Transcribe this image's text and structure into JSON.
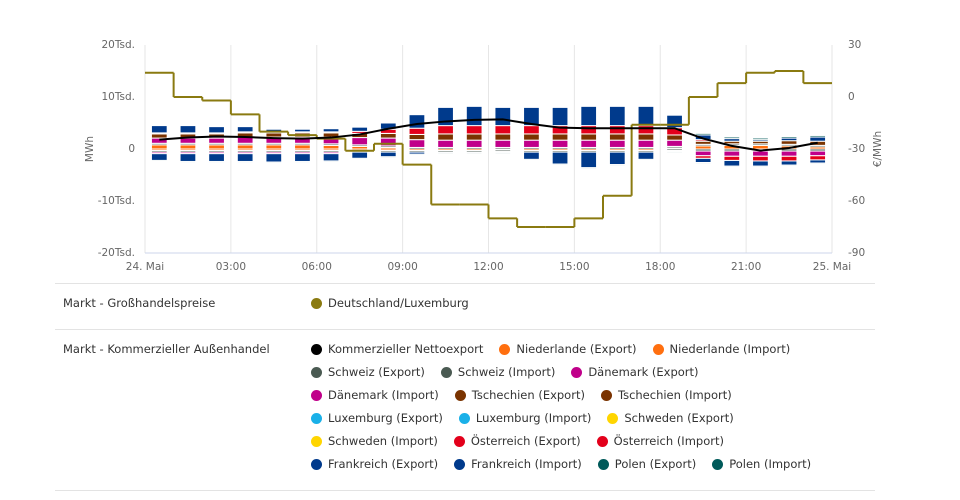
{
  "chart_data": {
    "type": "bar",
    "stacked": true,
    "x": [
      0,
      1,
      2,
      3,
      4,
      5,
      6,
      7,
      8,
      9,
      10,
      11,
      12,
      13,
      14,
      15,
      16,
      17,
      18,
      19,
      20,
      21,
      22,
      23
    ],
    "xlim": [
      0,
      24
    ],
    "xticks": [
      {
        "value": 0,
        "label": "24. Mai"
      },
      {
        "value": 3,
        "label": "03:00"
      },
      {
        "value": 6,
        "label": "06:00"
      },
      {
        "value": 9,
        "label": "09:00"
      },
      {
        "value": 12,
        "label": "12:00"
      },
      {
        "value": 15,
        "label": "15:00"
      },
      {
        "value": 18,
        "label": "18:00"
      },
      {
        "value": 21,
        "label": "21:00"
      },
      {
        "value": 24,
        "label": "25. Mai"
      }
    ],
    "ylim": [
      -20000,
      20000
    ],
    "yticks": [
      {
        "value": 20000,
        "label": "20Tsd."
      },
      {
        "value": 10000,
        "label": "10Tsd."
      },
      0,
      {
        "value": -10000,
        "label": "-10Tsd."
      },
      {
        "value": -20000,
        "label": "-20Tsd."
      }
    ],
    "y2lim": [
      -90,
      30
    ],
    "y2ticks": [
      30,
      0,
      -30,
      -60,
      -90
    ],
    "y_label": "MWh",
    "y2_label": "€/MWh",
    "grid": "x",
    "legend_groups": [
      "Markt - Großhandelspreise",
      "Markt - Kommerzieller Außenhandel"
    ],
    "series": [
      {
        "name": "Deutschland/Luxemburg",
        "type": "step",
        "axis": "y2",
        "color": "#8a7a10",
        "values": [
          14,
          0,
          -2,
          -10,
          -20,
          -22,
          -24,
          -31,
          -27,
          -39,
          -62,
          -62,
          -70,
          -75,
          -75,
          -70,
          -57,
          -16,
          -16,
          0,
          8,
          14,
          15,
          8
        ]
      },
      {
        "name": "Kommerzieller Nettoexport",
        "type": "line",
        "color": "#000000",
        "values": [
          1800,
          2200,
          2400,
          2300,
          2100,
          2000,
          2200,
          2800,
          3900,
          4800,
          5300,
          5600,
          5700,
          4800,
          4100,
          4000,
          4000,
          4000,
          4000,
          2000,
          600,
          -300,
          200,
          1200
        ]
      },
      {
        "name": "Niederlande (Export)",
        "color": "#ff6f0f",
        "values": [
          800,
          800,
          800,
          800,
          800,
          800,
          700,
          500,
          300,
          0,
          0,
          0,
          0,
          0,
          0,
          0,
          0,
          0,
          200,
          600,
          700,
          700,
          600,
          400
        ]
      },
      {
        "name": "Niederlande (Import)",
        "color": "#ff6f0f",
        "values": [
          -300,
          -300,
          -300,
          -300,
          -300,
          -300,
          -300,
          -300,
          -300,
          -300,
          -300,
          -300,
          -200,
          -300,
          -300,
          -300,
          -300,
          -300,
          0,
          0,
          0,
          0,
          0,
          0
        ]
      },
      {
        "name": "Schweiz (Export)",
        "color": "#4a5a52",
        "values": [
          300,
          300,
          300,
          300,
          300,
          300,
          300,
          300,
          300,
          300,
          300,
          300,
          300,
          300,
          300,
          300,
          300,
          300,
          300,
          300,
          300,
          300,
          300,
          300
        ]
      },
      {
        "name": "Schweiz (Import)",
        "color": "#4a5a52",
        "values": [
          -300,
          -300,
          -300,
          -300,
          -300,
          -300,
          -300,
          -300,
          -300,
          -300,
          -300,
          -300,
          -300,
          -300,
          -300,
          -300,
          -300,
          -300,
          -300,
          -400,
          -400,
          -400,
          -400,
          -400
        ]
      },
      {
        "name": "Dänemark (Export)",
        "color": "#c0008a",
        "values": [
          1000,
          1000,
          1000,
          1200,
          1200,
          1200,
          1300,
          1400,
          1500,
          1500,
          1400,
          1400,
          1400,
          1400,
          1400,
          1400,
          1400,
          1400,
          1200,
          0,
          0,
          0,
          0,
          0
        ]
      },
      {
        "name": "Dänemark (Import)",
        "color": "#c0008a",
        "values": [
          -300,
          -300,
          -300,
          -300,
          -300,
          -300,
          -300,
          0,
          0,
          0,
          0,
          0,
          0,
          0,
          0,
          0,
          0,
          0,
          0,
          -900,
          -1000,
          -1000,
          -1000,
          -900
        ]
      },
      {
        "name": "Tschechien (Export)",
        "color": "#7a3300",
        "values": [
          800,
          800,
          800,
          800,
          800,
          800,
          800,
          800,
          900,
          1000,
          1200,
          1200,
          1200,
          1200,
          1200,
          1200,
          1200,
          1200,
          1000,
          600,
          500,
          500,
          700,
          800
        ]
      },
      {
        "name": "Tschechien (Import)",
        "color": "#7a3300",
        "values": [
          0,
          0,
          0,
          0,
          0,
          0,
          0,
          0,
          0,
          0,
          0,
          0,
          0,
          0,
          0,
          0,
          0,
          0,
          0,
          0,
          0,
          0,
          0,
          0
        ]
      },
      {
        "name": "Luxemburg (Export)",
        "color": "#1ab0e8",
        "values": [
          0,
          0,
          0,
          0,
          0,
          0,
          0,
          0,
          0,
          0,
          0,
          0,
          0,
          0,
          0,
          0,
          0,
          0,
          0,
          0,
          0,
          0,
          0,
          0
        ]
      },
      {
        "name": "Luxemburg (Import)",
        "color": "#1ab0e8",
        "values": [
          0,
          0,
          0,
          0,
          0,
          0,
          0,
          0,
          0,
          0,
          0,
          0,
          0,
          0,
          0,
          0,
          0,
          0,
          0,
          0,
          0,
          0,
          0,
          0
        ]
      },
      {
        "name": "Schweden (Export)",
        "color": "#ffd500",
        "values": [
          0,
          0,
          0,
          0,
          0,
          0,
          0,
          0,
          0,
          0,
          0,
          0,
          0,
          0,
          0,
          0,
          0,
          0,
          0,
          0,
          0,
          0,
          0,
          0
        ]
      },
      {
        "name": "Schweden (Import)",
        "color": "#ffd500",
        "values": [
          0,
          0,
          0,
          0,
          0,
          0,
          0,
          0,
          0,
          0,
          0,
          0,
          0,
          0,
          0,
          0,
          0,
          0,
          0,
          0,
          0,
          0,
          0,
          0
        ]
      },
      {
        "name": "Österreich (Export)",
        "color": "#e3001b",
        "values": [
          200,
          200,
          200,
          200,
          200,
          200,
          200,
          400,
          800,
          1200,
          1600,
          1600,
          1600,
          1600,
          1600,
          1600,
          1600,
          1600,
          1400,
          300,
          0,
          0,
          0,
          0
        ]
      },
      {
        "name": "Österreich (Import)",
        "color": "#e3001b",
        "values": [
          0,
          0,
          0,
          0,
          0,
          0,
          0,
          0,
          0,
          0,
          0,
          0,
          0,
          0,
          0,
          0,
          0,
          0,
          0,
          -500,
          -800,
          -900,
          -900,
          -800
        ]
      },
      {
        "name": "Frankreich (Export)",
        "color": "#003a8c",
        "values": [
          1400,
          1400,
          1200,
          1000,
          500,
          500,
          600,
          800,
          1200,
          2600,
          3500,
          3700,
          3500,
          3500,
          3500,
          3700,
          3700,
          3700,
          2400,
          900,
          500,
          300,
          500,
          800
        ]
      },
      {
        "name": "Frankreich (Import)",
        "color": "#003a8c",
        "values": [
          -1300,
          -1500,
          -1500,
          -1500,
          -1600,
          -1500,
          -1400,
          -1200,
          -900,
          -400,
          -200,
          -200,
          -200,
          -1400,
          -2300,
          -3000,
          -2400,
          -1400,
          -200,
          -800,
          -1100,
          -1000,
          -800,
          -600
        ]
      },
      {
        "name": "Polen (Export)",
        "color": "#005a5a",
        "values": [
          0,
          0,
          0,
          0,
          0,
          0,
          0,
          0,
          0,
          0,
          0,
          0,
          0,
          0,
          0,
          0,
          0,
          0,
          0,
          300,
          300,
          300,
          300,
          300
        ]
      },
      {
        "name": "Polen (Import)",
        "color": "#005a5a",
        "values": [
          -200,
          -200,
          -200,
          -200,
          -200,
          -200,
          -200,
          -200,
          -200,
          -200,
          -200,
          -200,
          -200,
          -200,
          -200,
          -200,
          -200,
          -200,
          -200,
          -200,
          -200,
          -200,
          -200,
          -200
        ]
      }
    ]
  }
}
